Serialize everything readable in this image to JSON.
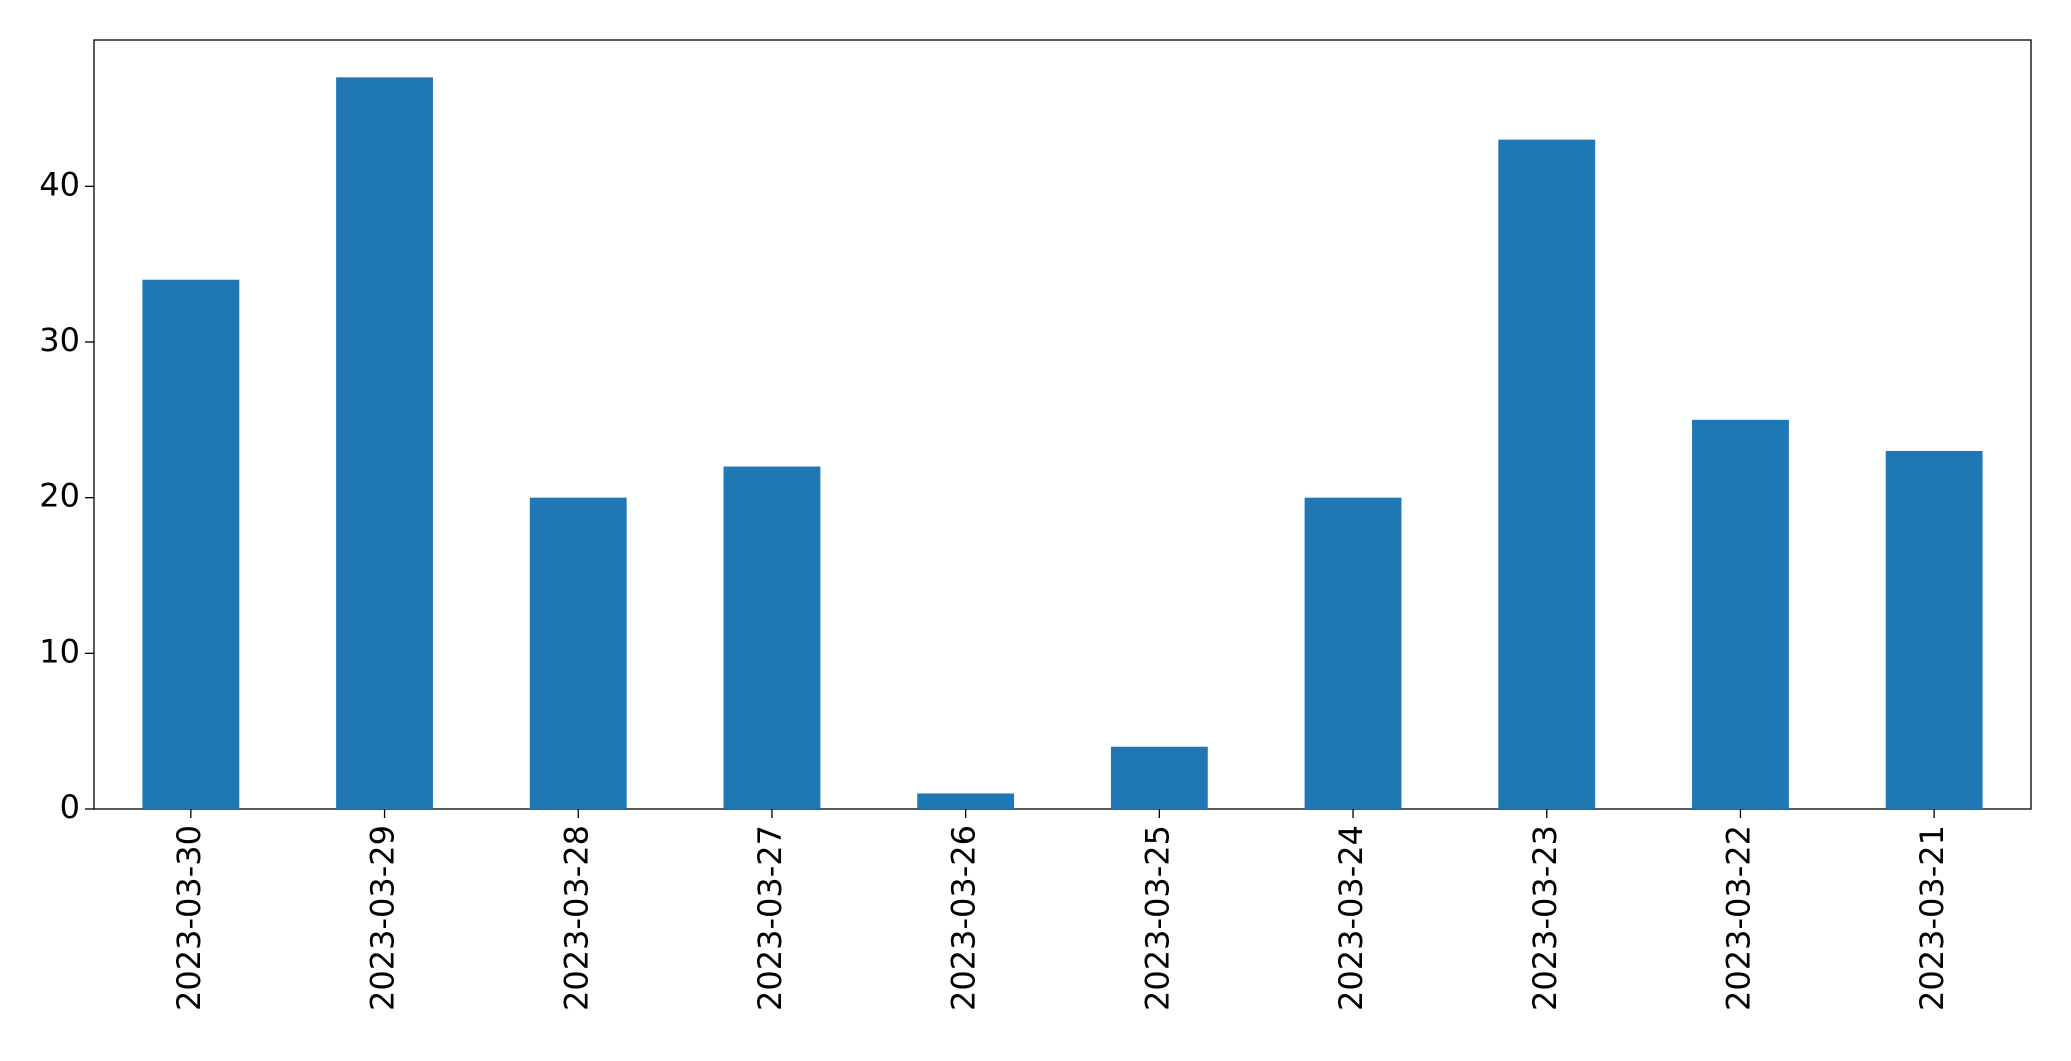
{
  "chart_data": {
    "type": "bar",
    "categories": [
      "2023-03-30",
      "2023-03-29",
      "2023-03-28",
      "2023-03-27",
      "2023-03-26",
      "2023-03-25",
      "2023-03-24",
      "2023-03-23",
      "2023-03-22",
      "2023-03-21"
    ],
    "values": [
      34,
      47,
      20,
      22,
      1,
      4,
      20,
      43,
      25,
      23
    ],
    "color": "#1f77b4",
    "ylim": [
      0,
      49.4
    ],
    "yticks": [
      0,
      10,
      20,
      30,
      40
    ],
    "grid": false
  }
}
